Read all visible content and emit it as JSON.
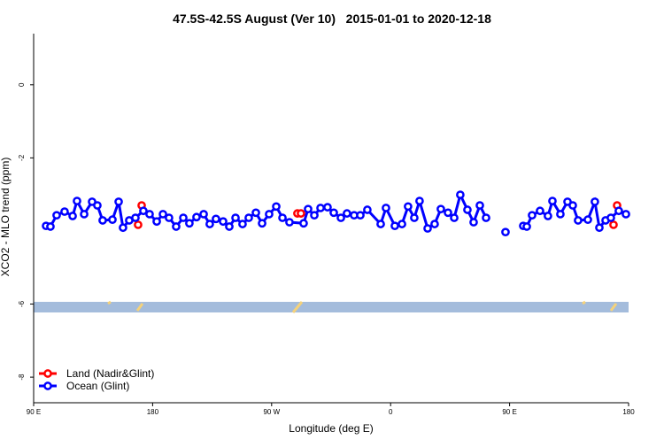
{
  "chart_data": {
    "type": "scatter",
    "title": "47.5S-42.5S August (Ver 10)   2015-01-01 to 2020-12-18",
    "xlabel": "Longitude (deg E)",
    "ylabel": "XCO2 - MLO trend (ppm)",
    "xlim": [
      90,
      540
    ],
    "ylim": [
      -8.7,
      1.4
    ],
    "xticks": [
      {
        "value": 90,
        "label": "90 E"
      },
      {
        "value": 180,
        "label": "180"
      },
      {
        "value": 270,
        "label": "90 W"
      },
      {
        "value": 360,
        "label": "0"
      },
      {
        "value": 450,
        "label": "90 E"
      },
      {
        "value": 540,
        "label": "180"
      }
    ],
    "yticks": [
      0,
      -2,
      -6,
      -8
    ],
    "legend": "bottom-left",
    "series": [
      {
        "name": "Land (Nadir&Glint)",
        "color": "#ff0000",
        "line": false,
        "x": [
          169.0,
          171.7,
          289.5,
          292.2,
          528.6,
          531.3
        ],
        "values": [
          -3.83,
          -3.3,
          -3.52,
          -3.52,
          -3.83,
          -3.3
        ]
      },
      {
        "name": "Ocean (Glint)",
        "color": "#0000ff",
        "line": true,
        "x": [
          99.4,
          102.7,
          107.4,
          113.4,
          119.5,
          122.8,
          128.2,
          134.2,
          138.2,
          142.2,
          149.6,
          154.3,
          157.6,
          162.3,
          167.0,
          173.0,
          177.7,
          183.1,
          187.8,
          192.4,
          197.8,
          203.2,
          207.8,
          213.2,
          218.6,
          223.2,
          227.9,
          233.3,
          238.0,
          242.7,
          248.0,
          252.7,
          258.1,
          262.8,
          268.1,
          273.5,
          278.2,
          283.5,
          294.2,
          297.6,
          302.3,
          307.0,
          312.3,
          317.0,
          322.4,
          327.0,
          332.4,
          337.1,
          342.4,
          352.5,
          356.5,
          363.2,
          368.6,
          373.2,
          377.9,
          381.9,
          388.0,
          393.3,
          398.0,
          403.4,
          408.1,
          412.7,
          418.1,
          422.8,
          427.5,
          432.2,
          446.9,
          460.3,
          463.0,
          467.0,
          473.0,
          479.0,
          482.4,
          488.4,
          493.8,
          497.8,
          501.8,
          509.2,
          514.5,
          517.9,
          522.6,
          526.6,
          532.6,
          538.0
        ],
        "values": [
          -3.86,
          -3.88,
          -3.57,
          -3.47,
          -3.59,
          -3.18,
          -3.54,
          -3.2,
          -3.3,
          -3.71,
          -3.69,
          -3.2,
          -3.91,
          -3.71,
          -3.64,
          -3.45,
          -3.54,
          -3.74,
          -3.54,
          -3.64,
          -3.88,
          -3.64,
          -3.79,
          -3.62,
          -3.54,
          -3.81,
          -3.67,
          -3.74,
          -3.88,
          -3.64,
          -3.81,
          -3.64,
          -3.5,
          -3.79,
          -3.54,
          -3.33,
          -3.64,
          -3.76,
          -3.79,
          -3.4,
          -3.57,
          -3.37,
          -3.35,
          -3.5,
          -3.64,
          -3.52,
          -3.57,
          -3.57,
          -3.42,
          -3.81,
          -3.37,
          -3.86,
          -3.81,
          -3.33,
          -3.64,
          -3.18,
          -3.93,
          -3.81,
          -3.4,
          -3.5,
          -3.64,
          -3.01,
          -3.42,
          -3.76,
          -3.3,
          -3.64,
          -4.03,
          -3.86,
          -3.88,
          -3.57,
          -3.45,
          -3.59,
          -3.18,
          -3.54,
          -3.2,
          -3.3,
          -3.71,
          -3.69,
          -3.2,
          -3.91,
          -3.71,
          -3.64,
          -3.45,
          -3.54
        ]
      }
    ]
  }
}
